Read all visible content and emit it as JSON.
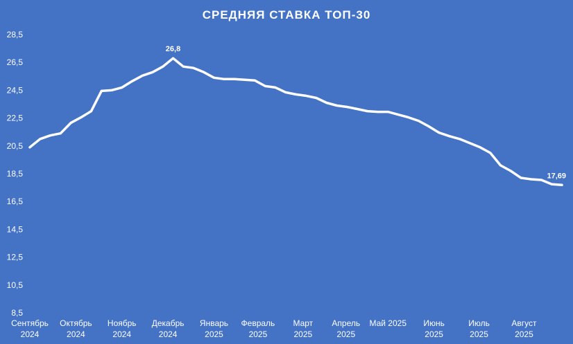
{
  "chart_data": {
    "type": "line",
    "title": "СРЕДНЯЯ СТАВКА ТОП-30",
    "xlabel": "",
    "ylabel": "",
    "ylim": [
      8.5,
      28.5
    ],
    "y_ticks": [
      "8,5",
      "10,5",
      "12,5",
      "14,5",
      "16,5",
      "18,5",
      "20,5",
      "22,5",
      "24,5",
      "26,5",
      "28,5"
    ],
    "x_labels": [
      {
        "line1": "Сентябрь",
        "line2": "2024",
        "index": 0
      },
      {
        "line1": "Октябрь",
        "line2": "2024",
        "index": 4.5
      },
      {
        "line1": "Ноябрь",
        "line2": "2024",
        "index": 9
      },
      {
        "line1": "Декабрь",
        "line2": "2024",
        "index": 13.5
      },
      {
        "line1": "Январь",
        "line2": "2025",
        "index": 18
      },
      {
        "line1": "Февраль",
        "line2": "2025",
        "index": 22.3
      },
      {
        "line1": "Март",
        "line2": "2025",
        "index": 26.7
      },
      {
        "line1": "Апрель",
        "line2": "2025",
        "index": 30.9
      },
      {
        "line1": "Май 2025",
        "line2": "",
        "index": 35
      },
      {
        "line1": "Июнь",
        "line2": "2025",
        "index": 39.5
      },
      {
        "line1": "Июль",
        "line2": "2025",
        "index": 43.9
      },
      {
        "line1": "Август",
        "line2": "2025",
        "index": 48.3
      }
    ],
    "grid": "vertical drop lines",
    "series": [
      {
        "values": [
          20.4,
          21.0,
          21.25,
          21.4,
          22.15,
          22.55,
          23.0,
          24.45,
          24.5,
          24.7,
          25.15,
          25.55,
          25.8,
          26.2,
          26.8,
          26.2,
          26.1,
          25.8,
          25.4,
          25.3,
          25.3,
          25.25,
          25.2,
          24.8,
          24.7,
          24.35,
          24.2,
          24.1,
          23.95,
          23.6,
          23.4,
          23.3,
          23.15,
          23.0,
          22.95,
          22.95,
          22.75,
          22.55,
          22.3,
          21.9,
          21.45,
          21.2,
          21.0,
          20.7,
          20.4,
          20.0,
          19.1,
          18.7,
          18.2,
          18.1,
          18.05,
          17.75,
          17.69
        ]
      }
    ],
    "annotations": [
      {
        "index": 14,
        "text": "26,8"
      },
      {
        "index": 52,
        "text": "17,69"
      }
    ],
    "colors": {
      "background": "#4472c4",
      "line": "#ffffff"
    }
  }
}
